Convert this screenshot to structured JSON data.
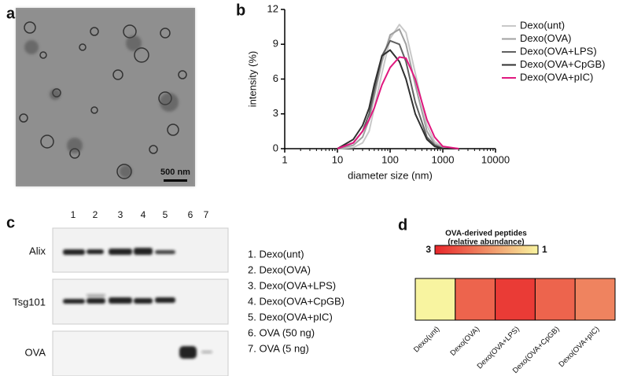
{
  "panel_labels": [
    "a",
    "b",
    "c",
    "d"
  ],
  "image": {
    "scale_bar": "500 nm"
  },
  "blot": {
    "lanes": [
      "1",
      "2",
      "3",
      "4",
      "5",
      "6",
      "7"
    ],
    "rows": [
      "Alix",
      "Tsg101",
      "OVA"
    ],
    "legend": [
      "1. Dexo(unt)",
      "2. Dexo(OVA)",
      "3. Dexo(OVA+LPS)",
      "4. Dexo(OVA+CpGB)",
      "5. Dexo(OVA+pIC)",
      "6. OVA (50 ng)",
      "7. OVA (5 ng)"
    ]
  },
  "chart_data": [
    {
      "type": "line",
      "xlabel": "diameter size (nm)",
      "ylabel": "intensity (%)",
      "log_x": true,
      "legend": "right",
      "x": [
        10,
        20,
        30,
        40,
        50,
        70,
        100,
        150,
        200,
        300,
        500,
        700,
        1000,
        2000
      ],
      "xlim": [
        1,
        10000
      ],
      "xticks": [
        1,
        10,
        100,
        1000,
        10000
      ],
      "ylim": [
        0,
        12
      ],
      "yticks": [
        0,
        3,
        6,
        9,
        12
      ],
      "series": [
        {
          "name": "Dexo(unt)",
          "color": "#c8c8c8",
          "values": [
            0,
            0.1,
            0.5,
            1.5,
            3.5,
            6.5,
            9.5,
            10.7,
            10,
            6.5,
            2,
            0.6,
            0.1,
            0
          ]
        },
        {
          "name": "Dexo(OVA)",
          "color": "#a0a0a0",
          "values": [
            0,
            0.3,
            1,
            2.5,
            4.5,
            7.5,
            9.8,
            10.3,
            9,
            5.5,
            1.5,
            0.4,
            0.1,
            0
          ]
        },
        {
          "name": "Dexo(OVA+LPS)",
          "color": "#606060",
          "values": [
            0,
            0.5,
            1.5,
            3,
            5,
            8,
            9.3,
            9,
            7.5,
            4,
            1,
            0.3,
            0,
            0
          ]
        },
        {
          "name": "Dexo(OVA+CpGB)",
          "color": "#303030",
          "values": [
            0,
            0.8,
            2,
            3.5,
            5.5,
            8,
            8.5,
            7.5,
            6,
            3,
            0.8,
            0.2,
            0,
            0
          ]
        },
        {
          "name": "Dexo(OVA+pIC)",
          "color": "#e0187f",
          "values": [
            0,
            0.5,
            1.5,
            2.5,
            3.5,
            5.5,
            7,
            7.9,
            7.8,
            6,
            2.5,
            1,
            0.2,
            0
          ]
        }
      ]
    },
    {
      "type": "heatmap",
      "title": [
        "OVA-derived peptides",
        "(relative abundance)"
      ],
      "clim": [
        3,
        1
      ],
      "colorbar_ticks": [
        3,
        1
      ],
      "colors": [
        "#e8262a",
        "#f8f4a0"
      ],
      "categories": [
        "Dexo(unt)",
        "Dexo(OVA)",
        "Dexo(OVA+LPS)",
        "Dexo(OVA+CpGB)",
        "Dexo(OVA+pIC)"
      ],
      "values": [
        1.0,
        2.4,
        2.8,
        2.4,
        2.1
      ]
    }
  ]
}
